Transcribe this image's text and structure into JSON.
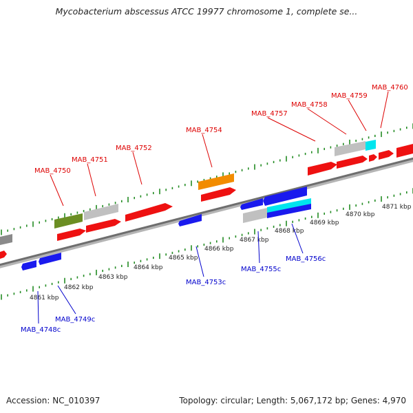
{
  "title": "Mycobacterium abscessus ATCC 19977 chromosome 1, complete se...",
  "footer": {
    "accession": "Accession: NC_010397",
    "summary": "Topology: circular; Length: 5,067,172 bp; Genes: 4,970"
  },
  "colors": {
    "forward_label": "#dd0000",
    "reverse_label": "#0000cc",
    "ticks": "#228b22",
    "backbone": "#777777"
  },
  "kbp_labels": [
    "4861 kbp",
    "4862 kbp",
    "4863 kbp",
    "4864 kbp",
    "4865 kbp",
    "4866 kbp",
    "4867 kbp",
    "4868 kbp",
    "4869 kbp",
    "4870 kbp",
    "4871 kbp"
  ],
  "forward_genes": [
    "MAB_4750",
    "MAB_4751",
    "MAB_4752",
    "MAB_4754",
    "MAB_4757",
    "MAB_4758",
    "MAB_4759",
    "MAB_4760"
  ],
  "reverse_genes": [
    "MAB_4748c",
    "MAB_4749c",
    "MAB_4753c",
    "MAB_4755c",
    "MAB_4756c"
  ]
}
